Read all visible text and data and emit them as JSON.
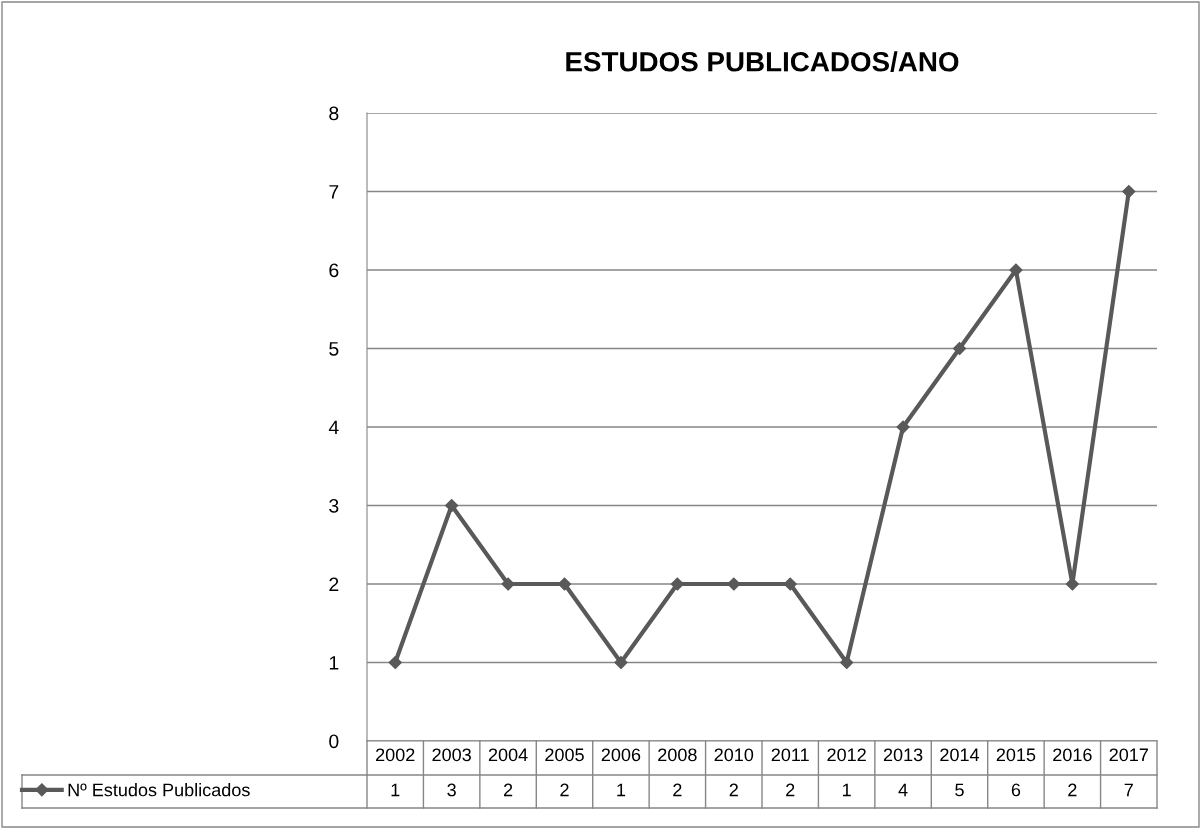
{
  "chart_data": {
    "type": "line",
    "title": "ESTUDOS PUBLICADOS/ANO",
    "categories": [
      "2002",
      "2003",
      "2004",
      "2005",
      "2006",
      "2008",
      "2010",
      "2011",
      "2012",
      "2013",
      "2014",
      "2015",
      "2016",
      "2017"
    ],
    "series": [
      {
        "name": "Nº Estudos Publicados",
        "color": "#595959",
        "values": [
          1,
          3,
          2,
          2,
          1,
          2,
          2,
          2,
          1,
          4,
          5,
          6,
          2,
          7
        ]
      }
    ],
    "ylim": [
      0,
      8
    ],
    "yticks": [
      0,
      1,
      2,
      3,
      4,
      5,
      6,
      7,
      8
    ],
    "grid": "y",
    "marker": "diamond",
    "line_style": "solid",
    "data_labels": true,
    "legend": "bottom"
  }
}
